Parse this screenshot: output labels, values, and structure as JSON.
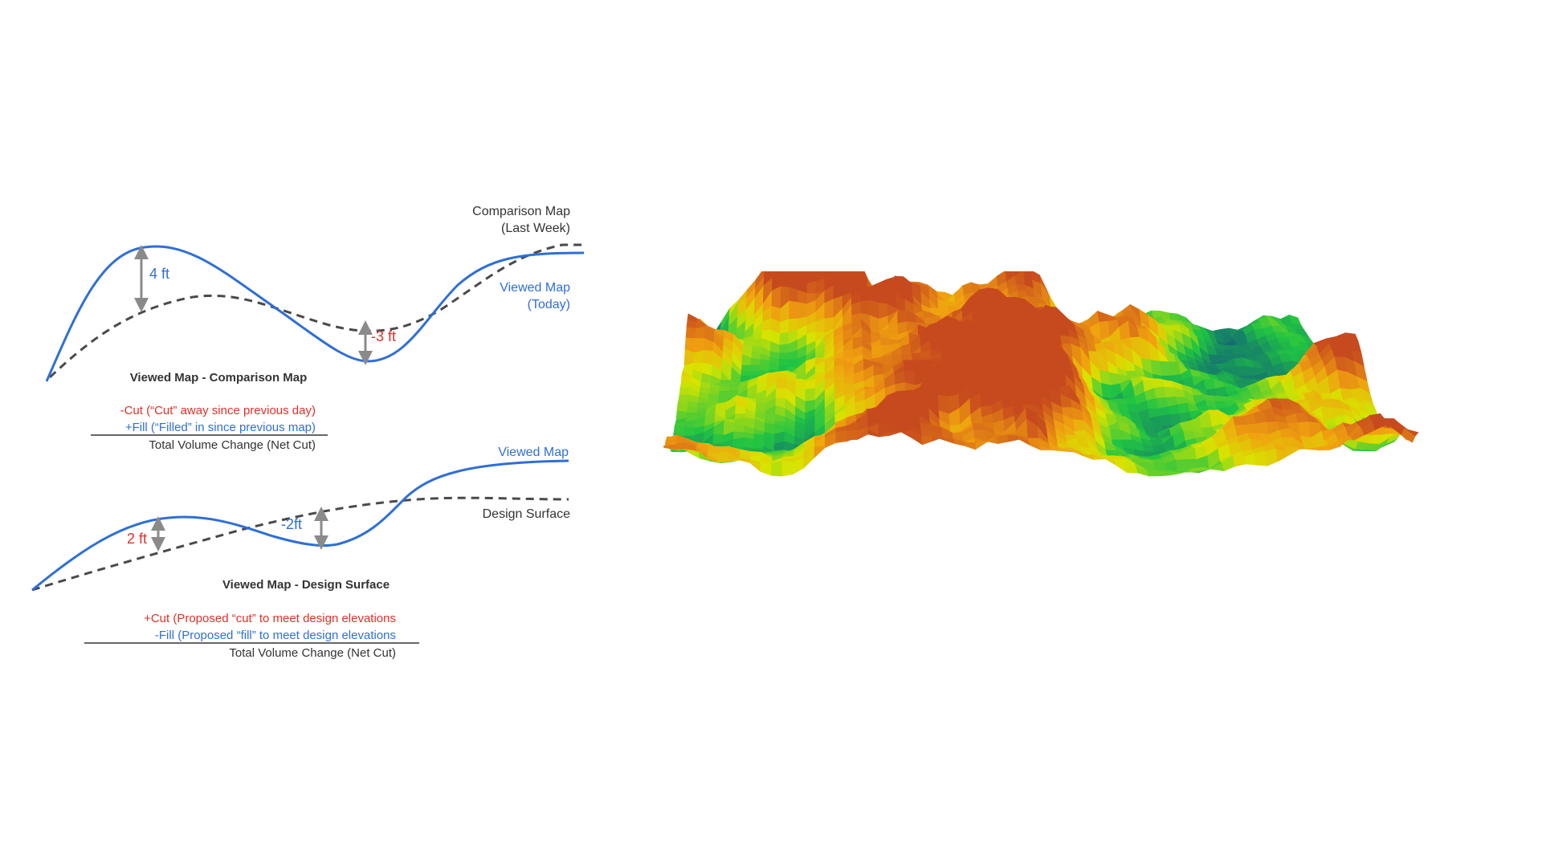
{
  "colors": {
    "viewed": "#2f6fd6",
    "reference": "#4a4a4a",
    "cut": "#e0302a",
    "fill": "#2f6fd6",
    "text": "#333333",
    "terrain_low": "#0b3d8c",
    "terrain_mid": "#21c443",
    "terrain_mid2": "#d8e400",
    "terrain_high": "#c74a1e"
  },
  "top_diagram": {
    "comparison_label_line1": "Comparison Map",
    "comparison_label_line2": "(Last Week)",
    "viewed_label_line1": "Viewed Map",
    "viewed_label_line2": "(Today)",
    "peak_delta": "4 ft",
    "trough_delta": "-3 ft",
    "title": "Viewed Map - Comparison Map",
    "cut_line": "-Cut (“Cut” away since previous day)",
    "fill_line": "+Fill (“Filled” in since previous map)",
    "total_line": "Total Volume Change (Net Cut)"
  },
  "bottom_diagram": {
    "viewed_label": "Viewed Map",
    "design_label": "Design Surface",
    "peak_delta": "2 ft",
    "trough_delta": "-2ft",
    "title": "Viewed Map - Design Surface",
    "cut_line": "+Cut (Proposed “cut” to meet design elevations",
    "fill_line": "-Fill (Proposed “fill” to meet design elevations",
    "total_line": "Total Volume Change (Net Cut)"
  }
}
